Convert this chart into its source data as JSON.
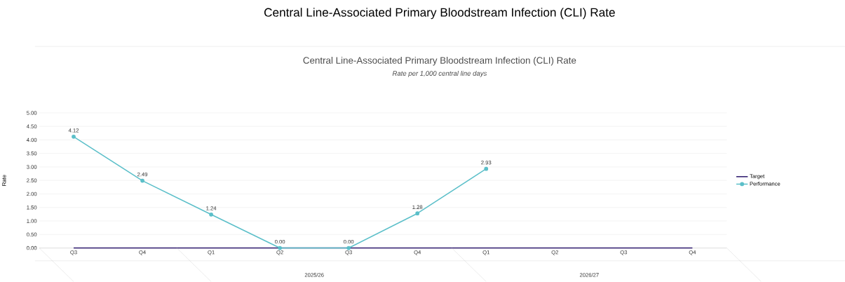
{
  "chart_data": {
    "type": "line",
    "title": "Central Line-Associated Primary Bloodstream Infection (CLI) Rate",
    "subtitle": "Rate per 1,000 central line days",
    "ylabel": "Rate",
    "annotations": [
      "Central Line-Associated Primary Bloodstream Infection (CLI) Rate",
      "2025/26",
      "2026/27"
    ],
    "categories": [
      "Q3",
      "Q4",
      "Q1",
      "Q2",
      "Q3",
      "Q4",
      "Q1",
      "Q2",
      "Q3",
      "Q4"
    ],
    "series": [
      {
        "name": "Target",
        "color": "#2e1a6e",
        "marker": "none",
        "values": [
          0,
          0,
          0,
          0,
          0,
          0,
          0,
          0,
          0,
          0
        ]
      },
      {
        "name": "Performance",
        "color": "#5bbfc9",
        "marker": "circle",
        "values": [
          4.12,
          2.49,
          1.24,
          0.0,
          0.0,
          1.28,
          2.93,
          null,
          null,
          null
        ],
        "value_labels": [
          "4.12",
          "2.49",
          "1.24",
          "0.00",
          "0.00",
          "1.28",
          "2.93",
          null,
          null,
          null
        ]
      }
    ],
    "ylim": [
      0,
      5
    ],
    "yticks": [
      {
        "value": 0,
        "label": "0.00"
      },
      {
        "value": 0.5,
        "label": "0.50"
      },
      {
        "value": 1,
        "label": "1.00"
      },
      {
        "value": 1.5,
        "label": "1.50"
      },
      {
        "value": 2,
        "label": "2.00"
      },
      {
        "value": 2.5,
        "label": "2.50"
      },
      {
        "value": 3,
        "label": "3.00"
      },
      {
        "value": 3.5,
        "label": "3.50"
      },
      {
        "value": 4,
        "label": "4.00"
      },
      {
        "value": 4.5,
        "label": "4.50"
      },
      {
        "value": 5,
        "label": "5.00"
      }
    ],
    "grid": "y",
    "legend": "right"
  }
}
